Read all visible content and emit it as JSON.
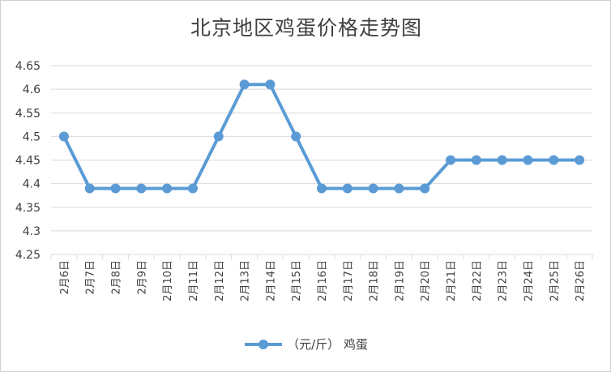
{
  "chart_data": {
    "type": "line",
    "title": "北京地区鸡蛋价格走势图",
    "categories": [
      "2月6日",
      "2月7日",
      "2月8日",
      "2月9日",
      "2月10日",
      "2月11日",
      "2月12日",
      "2月13日",
      "2月14日",
      "2月15日",
      "2月16日",
      "2月17日",
      "2月18日",
      "2月19日",
      "2月20日",
      "2月21日",
      "2月22日",
      "2月23日",
      "2月24日",
      "2月25日",
      "2月26日"
    ],
    "series": [
      {
        "name": "（元/斤） 鸡蛋",
        "color": "#5b9bd5",
        "values": [
          4.5,
          4.39,
          4.39,
          4.39,
          4.39,
          4.39,
          4.5,
          4.61,
          4.61,
          4.5,
          4.39,
          4.39,
          4.39,
          4.39,
          4.39,
          4.45,
          4.45,
          4.45,
          4.45,
          4.45,
          4.45
        ]
      }
    ],
    "y_ticks": [
      "4.25",
      "4.3",
      "4.35",
      "4.4",
      "4.45",
      "4.5",
      "4.55",
      "4.6",
      "4.65"
    ],
    "ylim": [
      4.25,
      4.65
    ],
    "grid": "horizontal",
    "legend": "bottom"
  }
}
